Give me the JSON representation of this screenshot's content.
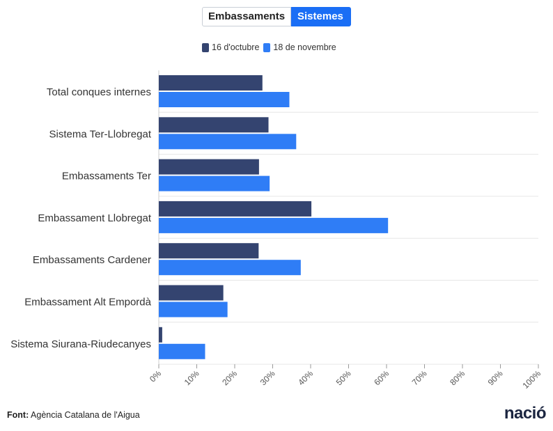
{
  "tabs": [
    {
      "label": "Embassaments",
      "active": false
    },
    {
      "label": "Sistemes",
      "active": true
    }
  ],
  "legend": [
    {
      "label": "16 d'octubre",
      "color": "#344470"
    },
    {
      "label": "18 de novembre",
      "color": "#2f7df6"
    }
  ],
  "chart_data": {
    "type": "bar",
    "orientation": "horizontal",
    "categories": [
      "Total conques internes",
      "Sistema Ter-Llobregat",
      "Embassaments Ter",
      "Embassament Llobregat",
      "Embassaments Cardener",
      "Embassament Alt Empordà",
      "Sistema Siurana-Riudecanyes"
    ],
    "series": [
      {
        "name": "16 d'octubre",
        "color": "#344470",
        "values": [
          27.3,
          28.9,
          26.4,
          40.2,
          26.3,
          17.0,
          0.9
        ]
      },
      {
        "name": "18 de novembre",
        "color": "#2f7df6",
        "values": [
          34.4,
          36.2,
          29.2,
          60.4,
          37.4,
          18.1,
          12.2
        ]
      }
    ],
    "xlim": [
      0,
      100
    ],
    "xticks": [
      "0%",
      "10%",
      "20%",
      "30%",
      "40%",
      "50%",
      "60%",
      "70%",
      "80%",
      "90%",
      "100%"
    ],
    "grid": true,
    "legend_position": "top"
  },
  "footer": {
    "source_label": "Font:",
    "source_text": "Agència Catalana de l'Aigua"
  },
  "logo": {
    "text": "nació"
  }
}
